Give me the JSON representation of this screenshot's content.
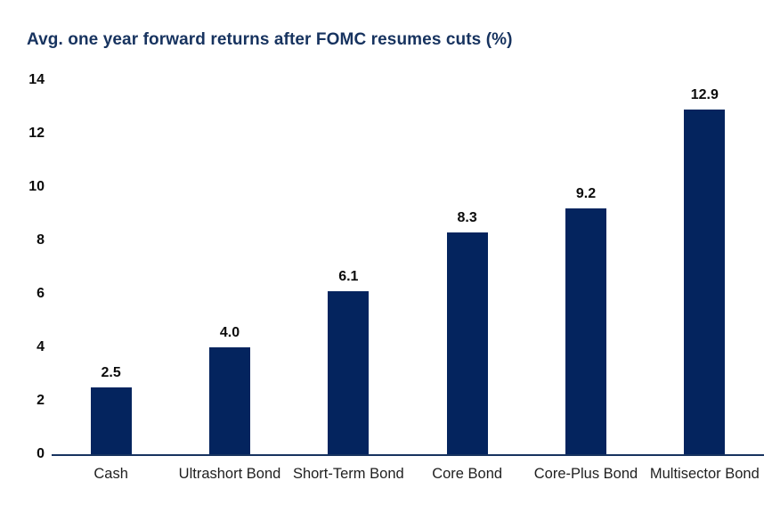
{
  "title": "Avg. one year forward returns after FOMC resumes cuts (%)",
  "colors": {
    "bar": "#04245e",
    "title_text": "#17335f",
    "axis_line": "#17335f",
    "tick_text": "#0b0b0b",
    "category_text": "#1f1f1f",
    "background": "#ffffff"
  },
  "chart_data": {
    "type": "bar",
    "title": "Avg. one year forward returns after FOMC resumes cuts (%)",
    "categories": [
      "Cash",
      "Ultrashort Bond",
      "Short-Term Bond",
      "Core Bond",
      "Core-Plus Bond",
      "Multisector Bond"
    ],
    "values": [
      2.5,
      4.0,
      6.1,
      8.3,
      9.2,
      12.9
    ],
    "value_labels": [
      "2.5",
      "4.0",
      "6.1",
      "8.3",
      "9.2",
      "12.9"
    ],
    "xlabel": "",
    "ylabel": "",
    "ylim": [
      0,
      14
    ],
    "yticks": [
      0,
      2,
      4,
      6,
      8,
      10,
      12,
      14
    ],
    "grid": false,
    "legend_position": "none",
    "bar_color": "#04245e"
  }
}
